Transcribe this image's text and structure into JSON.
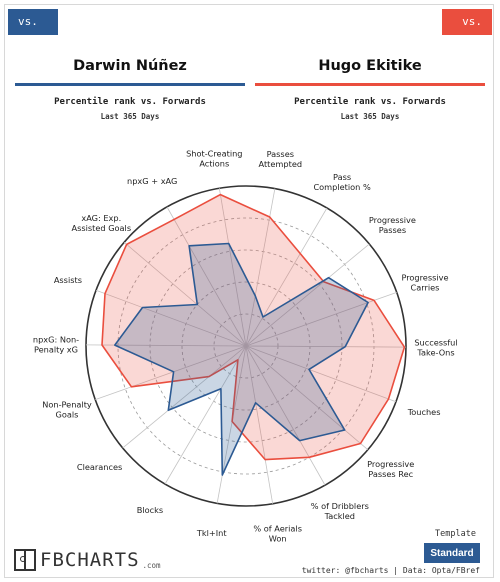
{
  "header": {
    "left_tag": "vs. FW",
    "right_tag": "vs. FW"
  },
  "players": {
    "left": {
      "name": "Darwin Núñez",
      "color": "#2c5a93",
      "subtitle": "Percentile rank vs. Forwards",
      "period": "Last 365 Days"
    },
    "right": {
      "name": "Hugo Ekitike",
      "color": "#ea4e3e",
      "subtitle": "Percentile rank vs. Forwards",
      "period": "Last 365 Days"
    }
  },
  "chart_data": {
    "type": "radar",
    "axes": [
      "Shot-Creating Actions",
      "Passes Attempted",
      "Pass Completion %",
      "Progressive Passes",
      "Progressive Carries",
      "Successful Take-Ons",
      "Touches",
      "Progressive Passes Rec",
      "% of Dribblers Tackled",
      "% of Aerials Won",
      "Tkl+Int",
      "Blocks",
      "Clearances",
      "Non-Penalty Goals",
      "npxG: Non-Penalty xG",
      "Assists",
      "xAG: Exp. Assisted Goals",
      "npxG + xAG"
    ],
    "range": [
      0,
      100
    ],
    "series": [
      {
        "name": "Darwin Núñez",
        "color": "#2c5a93",
        "values": [
          65,
          32,
          21,
          67,
          81,
          62,
          42,
          81,
          68,
          36,
          82,
          31,
          63,
          48,
          82,
          69,
          40,
          72
        ]
      },
      {
        "name": "Hugo Ekitike",
        "color": "#ea4e3e",
        "values": [
          96,
          82,
          67,
          63,
          85,
          99,
          95,
          94,
          80,
          72,
          48,
          10,
          30,
          76,
          90,
          94,
          98,
          91
        ]
      }
    ]
  },
  "footer": {
    "logo_text": "FBCHARTS",
    "logo_suffix": ".com",
    "template_label": "Template",
    "template_button": "Standard",
    "credit": "twitter: @fbcharts | Data: Opta/FBref"
  }
}
